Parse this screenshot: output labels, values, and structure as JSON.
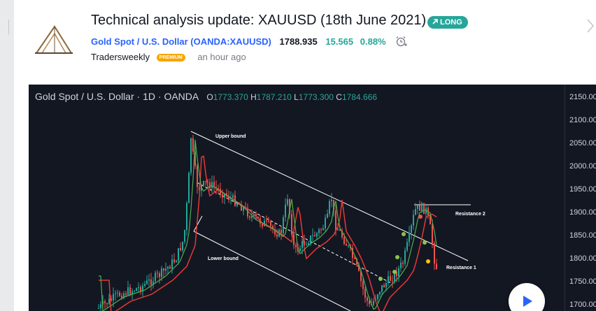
{
  "idea": {
    "title": "Technical analysis update: XAUUSD (18th June 2021)",
    "direction_badge": "LONG"
  },
  "symbol": {
    "name": "Gold Spot / U.S. Dollar",
    "ticker": "OANDA:XAUUSD",
    "price": "1788.935",
    "change": "15.565",
    "change_pct": "0.88%"
  },
  "author": {
    "name": "Tradersweekly",
    "badge": "PREMIUM",
    "posted": "an hour ago"
  },
  "chart": {
    "header_symbol": "Gold Spot / U.S. Dollar",
    "interval": "1D",
    "exchange": "OANDA",
    "open_label": "O",
    "open": "1773.370",
    "high_label": "H",
    "high": "1787.210",
    "low_label": "L",
    "low": "1773.300",
    "close_label": "C",
    "close": "1784.666",
    "price_axis": [
      "2150.000",
      "2100.000",
      "2050.000",
      "2000.000",
      "1950.000",
      "1900.000",
      "1850.000",
      "1800.000",
      "1750.000",
      "1700.000"
    ],
    "annotations": {
      "upper": "Upper bound",
      "lower": "Lower bound",
      "resistance1": "Resistance 1",
      "resistance2": "Resistance 2"
    },
    "colors": {
      "background": "#131722",
      "up": "#26a69a",
      "down": "#ef5350",
      "ma_fast": "#4caf50",
      "ma_slow": "#e53935"
    }
  },
  "icons": {
    "logo": "triangle-logo-icon",
    "long": "arrow-up-right-icon",
    "alert": "alarm-clock-plus-icon",
    "next": "chevron-right-icon",
    "play": "play-icon"
  }
}
